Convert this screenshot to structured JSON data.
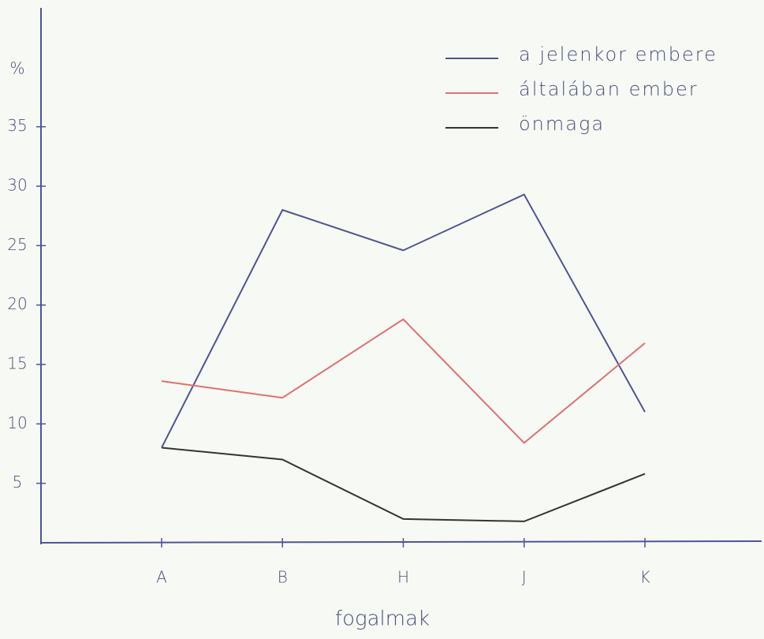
{
  "chart_data": {
    "type": "line",
    "y_label": "%",
    "x_label": "fogalmak",
    "categories": [
      "A",
      "B",
      "H",
      "J",
      "K"
    ],
    "series": [
      {
        "name": "a jelenkor embere",
        "color": "#4f5590",
        "values": [
          8.0,
          28.0,
          24.6,
          29.3,
          11.0
        ]
      },
      {
        "name": "általában ember",
        "color": "#e07070",
        "values": [
          13.6,
          12.2,
          18.8,
          8.4,
          16.8
        ]
      },
      {
        "name": "önmaga",
        "color": "#343434",
        "values": [
          8.0,
          7.0,
          2.0,
          1.8,
          5.8
        ]
      }
    ],
    "ylim": [
      0,
      45
    ],
    "yticks": [
      5,
      10,
      15,
      20,
      25,
      30,
      35
    ],
    "legend": "top-right"
  }
}
